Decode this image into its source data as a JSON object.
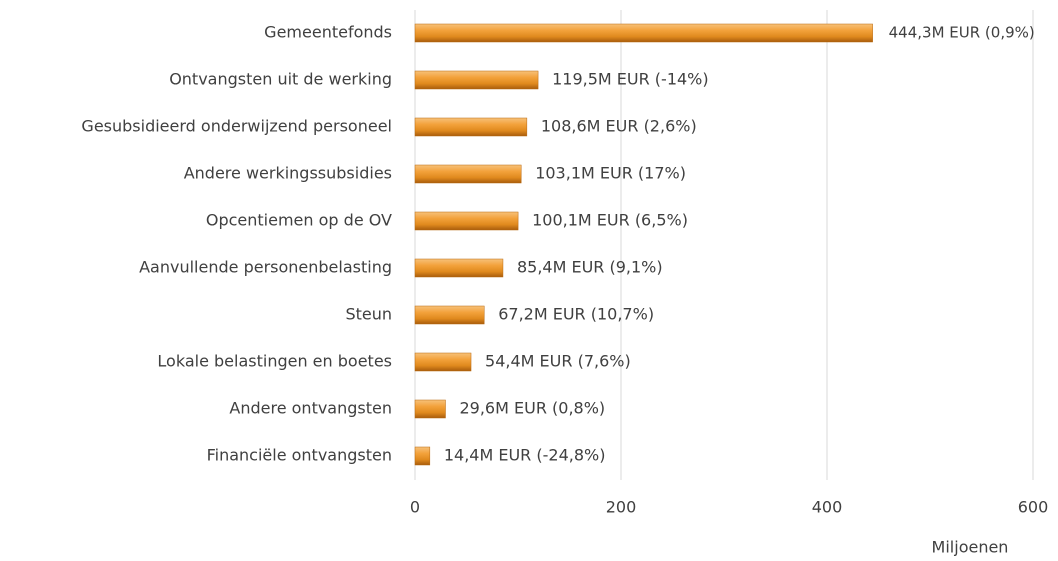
{
  "chart_data": {
    "type": "bar",
    "orientation": "horizontal",
    "categories": [
      "Gemeentefonds",
      "Ontvangsten uit de werking",
      "Gesubsidieerd onderwijzend personeel",
      "Andere werkingssubsidies",
      "Opcentiemen op de OV",
      "Aanvullende personenbelasting",
      "Steun",
      "Lokale belastingen en boetes",
      "Andere ontvangsten",
      "Financiële ontvangsten"
    ],
    "values": [
      444.3,
      119.5,
      108.6,
      103.1,
      100.1,
      85.4,
      67.2,
      54.4,
      29.6,
      14.4
    ],
    "value_labels": [
      "444,3M EUR (0,9%)",
      "119,5M EUR (-14%)",
      "108,6M EUR (2,6%)",
      "103,1M EUR (17%)",
      "100,1M EUR (6,5%)",
      "85,4M EUR (9,1%)",
      "67,2M EUR (10,7%)",
      "54,4M EUR (7,6%)",
      "29,6M EUR (0,8%)",
      "14,4M EUR (-24,8%)"
    ],
    "color": "#f0a030",
    "xlim": [
      0,
      600
    ],
    "xticks": [
      0,
      200,
      400,
      600
    ],
    "grid": true,
    "x_label": "Miljoenen"
  }
}
